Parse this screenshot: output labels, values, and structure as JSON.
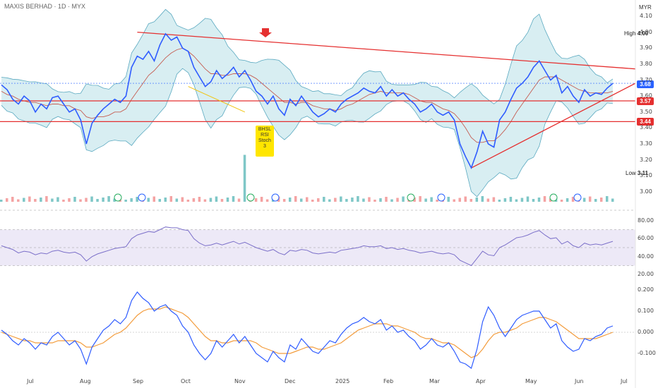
{
  "header": {
    "title": "MAXIS BERHAD · 1D · MYX",
    "currency": "MYR"
  },
  "price_tags": {
    "last": "3.68",
    "support1": "3.57",
    "support2": "3.44"
  },
  "hilo": {
    "high_label": "High",
    "high_value": "4.00",
    "low_label": "Low",
    "low_value": "3.11"
  },
  "note_lines": [
    "BHSL",
    "RSI",
    "Stoch",
    "3"
  ],
  "colors": {
    "price": "#2f5cff",
    "band": "#b8e0e8",
    "red": "#e53030",
    "rsi": "#7b6fc9",
    "signal": "#f39c3c",
    "tag_blue": "#2962ff",
    "tag_red": "#e53030"
  },
  "chart_data": [
    {
      "type": "line",
      "title": "MAXIS BERHAD · 1D · MYX",
      "x_ticks": [
        "Jul",
        "Aug",
        "Sep",
        "Oct",
        "Nov",
        "Dec",
        "2025",
        "Feb",
        "Mar",
        "Apr",
        "May",
        "Jun",
        "Jul"
      ],
      "y_ticks": [
        "4.10",
        "4.00",
        "3.90",
        "3.80",
        "3.70",
        "3.60",
        "3.50",
        "3.40",
        "3.30",
        "3.20",
        "3.10",
        "3.00"
      ],
      "ylim": [
        3.0,
        4.1
      ],
      "series": [
        {
          "values": [
            3.67,
            3.64,
            3.58,
            3.55,
            3.6,
            3.57,
            3.5,
            3.55,
            3.52,
            3.59,
            3.6,
            3.55,
            3.5,
            3.52,
            3.45,
            3.3,
            3.43,
            3.48,
            3.52,
            3.55,
            3.58,
            3.56,
            3.6,
            3.78,
            3.85,
            3.83,
            3.88,
            3.82,
            3.92,
            3.99,
            3.95,
            3.97,
            3.9,
            3.88,
            3.78,
            3.72,
            3.66,
            3.69,
            3.76,
            3.71,
            3.74,
            3.78,
            3.72,
            3.76,
            3.7,
            3.63,
            3.6,
            3.55,
            3.6,
            3.52,
            3.48,
            3.58,
            3.54,
            3.6,
            3.55,
            3.5,
            3.47,
            3.49,
            3.52,
            3.5,
            3.55,
            3.58,
            3.6,
            3.62,
            3.65,
            3.63,
            3.62,
            3.66,
            3.6,
            3.64,
            3.6,
            3.62,
            3.58,
            3.55,
            3.5,
            3.52,
            3.55,
            3.5,
            3.48,
            3.5,
            3.45,
            3.3,
            3.22,
            3.15,
            3.25,
            3.38,
            3.3,
            3.28,
            3.45,
            3.5,
            3.58,
            3.65,
            3.68,
            3.72,
            3.78,
            3.82,
            3.76,
            3.7,
            3.73,
            3.62,
            3.66,
            3.6,
            3.56,
            3.64,
            3.6,
            3.62,
            3.61,
            3.65,
            3.68
          ]
        },
        {
          "values": [
            3.63,
            3.61,
            3.6,
            3.58,
            3.57,
            3.56,
            3.56,
            3.55,
            3.54,
            3.55,
            3.55,
            3.54,
            3.54,
            3.52,
            3.51,
            3.47,
            3.46,
            3.47,
            3.47,
            3.48,
            3.5,
            3.5,
            3.52,
            3.58,
            3.63,
            3.68,
            3.73,
            3.76,
            3.8,
            3.84,
            3.87,
            3.89,
            3.9,
            3.88,
            3.85,
            3.81,
            3.77,
            3.74,
            3.74,
            3.73,
            3.73,
            3.74,
            3.74,
            3.74,
            3.73,
            3.71,
            3.68,
            3.65,
            3.62,
            3.59,
            3.56,
            3.56,
            3.55,
            3.56,
            3.56,
            3.54,
            3.53,
            3.52,
            3.52,
            3.51,
            3.52,
            3.54,
            3.55,
            3.57,
            3.59,
            3.61,
            3.62,
            3.63,
            3.62,
            3.62,
            3.62,
            3.62,
            3.61,
            3.59,
            3.57,
            3.56,
            3.56,
            3.54,
            3.52,
            3.51,
            3.49,
            3.45,
            3.4,
            3.34,
            3.31,
            3.31,
            3.32,
            3.32,
            3.35,
            3.39,
            3.44,
            3.5,
            3.55,
            3.6,
            3.65,
            3.7,
            3.72,
            3.72,
            3.72,
            3.7,
            3.68,
            3.66,
            3.64,
            3.63,
            3.62,
            3.62,
            3.62,
            3.62,
            3.63
          ]
        }
      ]
    },
    {
      "type": "line",
      "title": "",
      "y_ticks": [
        "80.00",
        "60.00",
        "40.00",
        "20.00"
      ],
      "ylim": [
        10,
        90
      ],
      "reference_lines": [
        70,
        50,
        30
      ],
      "series": [
        {
          "values": [
            52,
            50,
            48,
            44,
            46,
            45,
            42,
            44,
            43,
            46,
            47,
            45,
            44,
            45,
            42,
            35,
            40,
            43,
            45,
            47,
            49,
            50,
            51,
            60,
            64,
            66,
            68,
            67,
            70,
            73,
            72,
            72,
            70,
            69,
            60,
            55,
            52,
            53,
            55,
            53,
            55,
            57,
            54,
            56,
            53,
            50,
            48,
            46,
            48,
            44,
            42,
            47,
            46,
            48,
            47,
            44,
            43,
            44,
            45,
            44,
            47,
            48,
            49,
            50,
            52,
            51,
            51,
            52,
            49,
            50,
            48,
            49,
            47,
            46,
            44,
            45,
            46,
            44,
            43,
            44,
            42,
            36,
            33,
            30,
            38,
            46,
            42,
            41,
            50,
            53,
            57,
            61,
            62,
            64,
            67,
            69,
            64,
            60,
            61,
            54,
            57,
            52,
            50,
            55,
            53,
            54,
            53,
            55,
            57
          ]
        }
      ]
    },
    {
      "type": "line",
      "title": "",
      "y_ticks": [
        "0.200",
        "0.100",
        "0.000",
        "-0.100"
      ],
      "ylim": [
        -0.18,
        0.22
      ],
      "series": [
        {
          "values": [
            0.01,
            -0.01,
            -0.04,
            -0.06,
            -0.03,
            -0.05,
            -0.08,
            -0.05,
            -0.06,
            -0.02,
            0.0,
            -0.03,
            -0.06,
            -0.04,
            -0.08,
            -0.15,
            -0.07,
            -0.03,
            0.01,
            0.03,
            0.06,
            0.04,
            0.07,
            0.15,
            0.19,
            0.16,
            0.14,
            0.1,
            0.12,
            0.13,
            0.1,
            0.08,
            0.03,
            0.0,
            -0.06,
            -0.1,
            -0.13,
            -0.1,
            -0.04,
            -0.07,
            -0.04,
            -0.01,
            -0.05,
            -0.02,
            -0.06,
            -0.1,
            -0.12,
            -0.14,
            -0.09,
            -0.12,
            -0.14,
            -0.06,
            -0.08,
            -0.03,
            -0.06,
            -0.09,
            -0.1,
            -0.07,
            -0.04,
            -0.05,
            -0.01,
            0.02,
            0.04,
            0.05,
            0.07,
            0.05,
            0.04,
            0.06,
            0.01,
            0.03,
            0.0,
            0.01,
            -0.02,
            -0.04,
            -0.08,
            -0.06,
            -0.03,
            -0.06,
            -0.07,
            -0.05,
            -0.09,
            -0.14,
            -0.15,
            -0.17,
            -0.08,
            0.05,
            0.12,
            0.08,
            0.02,
            -0.02,
            0.02,
            0.06,
            0.08,
            0.09,
            0.1,
            0.1,
            0.06,
            0.02,
            0.04,
            -0.04,
            -0.07,
            -0.09,
            -0.08,
            -0.03,
            -0.04,
            -0.02,
            -0.01,
            0.02,
            0.03
          ]
        },
        {
          "values": [
            0.0,
            -0.01,
            -0.02,
            -0.03,
            -0.04,
            -0.04,
            -0.05,
            -0.05,
            -0.05,
            -0.05,
            -0.04,
            -0.04,
            -0.04,
            -0.04,
            -0.05,
            -0.07,
            -0.07,
            -0.06,
            -0.05,
            -0.03,
            -0.01,
            0.0,
            0.02,
            0.05,
            0.08,
            0.1,
            0.11,
            0.11,
            0.11,
            0.12,
            0.11,
            0.1,
            0.09,
            0.07,
            0.04,
            0.01,
            -0.02,
            -0.04,
            -0.04,
            -0.05,
            -0.05,
            -0.04,
            -0.04,
            -0.04,
            -0.04,
            -0.05,
            -0.07,
            -0.08,
            -0.09,
            -0.1,
            -0.1,
            -0.1,
            -0.09,
            -0.08,
            -0.07,
            -0.07,
            -0.08,
            -0.08,
            -0.07,
            -0.06,
            -0.05,
            -0.03,
            -0.01,
            0.01,
            0.02,
            0.03,
            0.04,
            0.04,
            0.04,
            0.03,
            0.03,
            0.02,
            0.01,
            0.0,
            -0.02,
            -0.03,
            -0.03,
            -0.04,
            -0.05,
            -0.05,
            -0.06,
            -0.08,
            -0.1,
            -0.12,
            -0.11,
            -0.08,
            -0.04,
            -0.01,
            0.0,
            0.0,
            0.01,
            0.02,
            0.04,
            0.05,
            0.06,
            0.07,
            0.07,
            0.06,
            0.05,
            0.03,
            0.01,
            -0.01,
            -0.03,
            -0.03,
            -0.03,
            -0.03,
            -0.02,
            -0.01,
            0.0
          ]
        }
      ]
    }
  ]
}
